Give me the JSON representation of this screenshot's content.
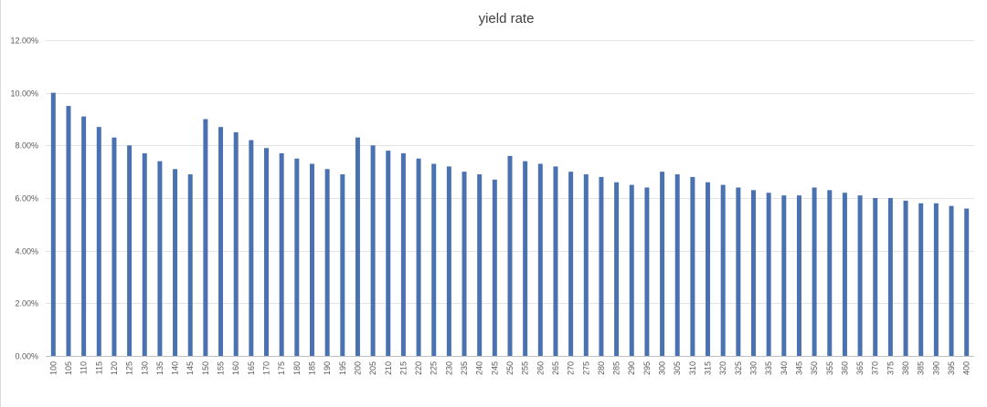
{
  "chart_data": {
    "type": "bar",
    "title": "yield rate",
    "xlabel": "",
    "ylabel": "",
    "ylim": [
      0,
      0.12
    ],
    "y_ticks": [
      "0.00%",
      "2.00%",
      "4.00%",
      "6.00%",
      "8.00%",
      "10.00%",
      "12.00%"
    ],
    "grid": true,
    "legend": "none",
    "bar_color": "#4a72b0",
    "categories": [
      "100",
      "105",
      "110",
      "115",
      "120",
      "125",
      "130",
      "135",
      "140",
      "145",
      "150",
      "155",
      "160",
      "165",
      "170",
      "175",
      "180",
      "185",
      "190",
      "195",
      "200",
      "205",
      "210",
      "215",
      "220",
      "225",
      "230",
      "235",
      "240",
      "245",
      "250",
      "255",
      "260",
      "265",
      "270",
      "275",
      "280",
      "285",
      "290",
      "295",
      "300",
      "305",
      "310",
      "315",
      "320",
      "325",
      "330",
      "335",
      "340",
      "345",
      "350",
      "355",
      "360",
      "365",
      "370",
      "375",
      "380",
      "385",
      "390",
      "395",
      "400"
    ],
    "values": [
      0.1,
      0.095,
      0.091,
      0.087,
      0.083,
      0.08,
      0.077,
      0.074,
      0.071,
      0.069,
      0.09,
      0.087,
      0.085,
      0.082,
      0.079,
      0.077,
      0.075,
      0.073,
      0.071,
      0.069,
      0.083,
      0.08,
      0.078,
      0.077,
      0.075,
      0.073,
      0.072,
      0.07,
      0.069,
      0.067,
      0.076,
      0.074,
      0.073,
      0.072,
      0.07,
      0.069,
      0.068,
      0.066,
      0.065,
      0.064,
      0.07,
      0.069,
      0.068,
      0.066,
      0.065,
      0.064,
      0.063,
      0.062,
      0.061,
      0.061,
      0.064,
      0.063,
      0.062,
      0.061,
      0.06,
      0.06,
      0.059,
      0.058,
      0.058,
      0.057,
      0.056
    ]
  }
}
